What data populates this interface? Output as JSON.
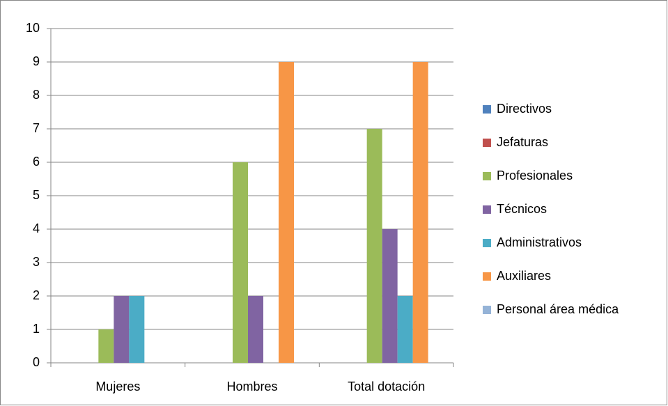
{
  "chart_data": {
    "type": "bar",
    "categories": [
      "Mujeres",
      "Hombres",
      "Total dotación"
    ],
    "series": [
      {
        "name": "Directivos",
        "color": "#4f81bd",
        "values": [
          0,
          0,
          0
        ]
      },
      {
        "name": "Jefaturas",
        "color": "#c0504d",
        "values": [
          0,
          0,
          0
        ]
      },
      {
        "name": "Profesionales",
        "color": "#9bbb59",
        "values": [
          1,
          6,
          7
        ]
      },
      {
        "name": "Técnicos",
        "color": "#8064a2",
        "values": [
          2,
          2,
          4
        ]
      },
      {
        "name": "Administrativos",
        "color": "#4bacc6",
        "values": [
          2,
          0,
          2
        ]
      },
      {
        "name": "Auxiliares",
        "color": "#f79646",
        "values": [
          0,
          9,
          9
        ]
      },
      {
        "name": "Personal área médica",
        "color": "#95b3d7",
        "values": [
          0,
          0,
          0
        ]
      }
    ],
    "ylim": [
      0,
      10
    ],
    "yticks": [
      0,
      1,
      2,
      3,
      4,
      5,
      6,
      7,
      8,
      9,
      10
    ],
    "grid": true,
    "legend": "right"
  }
}
